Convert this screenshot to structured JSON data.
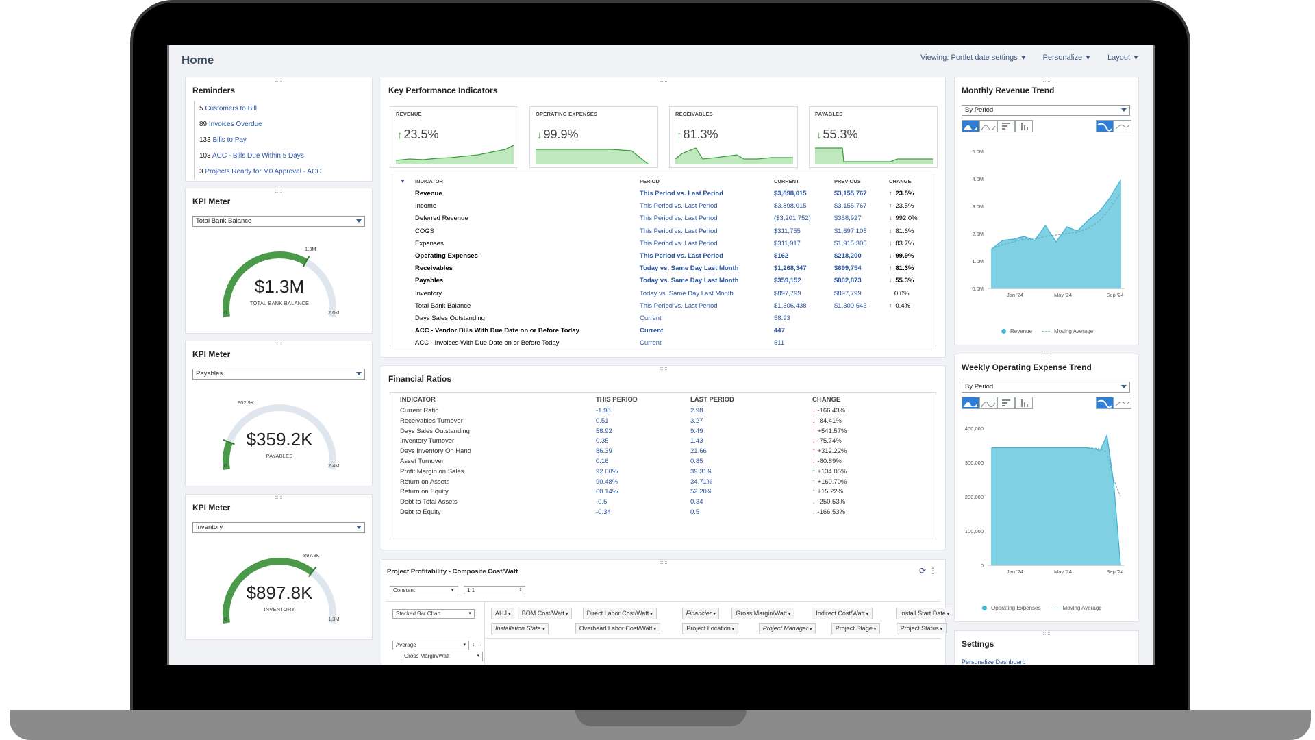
{
  "page": {
    "title": "Home"
  },
  "top_menu": [
    {
      "label": "Viewing: Portlet date settings"
    },
    {
      "label": "Personalize"
    },
    {
      "label": "Layout"
    }
  ],
  "reminders": {
    "title": "Reminders",
    "items": [
      {
        "count": "5",
        "label": "Customers to Bill"
      },
      {
        "count": "89",
        "label": "Invoices Overdue"
      },
      {
        "count": "133",
        "label": "Bills to Pay"
      },
      {
        "count": "103",
        "label": "ACC - Bills Due Within 5 Days"
      },
      {
        "count": "3",
        "label": "Projects Ready for M0 Approval - ACC"
      }
    ]
  },
  "kpi_meters": [
    {
      "title": "KPI Meter",
      "select": "Total Bank Balance",
      "value": "$1.3M",
      "label": "TOTAL BANK BALANCE",
      "min": "0",
      "max": "2.0M",
      "marker": "1.3M",
      "fraction": 0.65
    },
    {
      "title": "KPI Meter",
      "select": "Payables",
      "value": "$359.2K",
      "label": "PAYABLES",
      "min": "0",
      "max": "2.4M",
      "marker": "802.9K",
      "fraction": 0.15
    },
    {
      "title": "KPI Meter",
      "select": "Inventory",
      "value": "$897.8K",
      "label": "INVENTORY",
      "min": "0",
      "max": "1.3M",
      "marker": "897.8K",
      "fraction": 0.69
    }
  ],
  "kpi": {
    "title": "Key Performance Indicators",
    "cards": [
      {
        "label": "REVENUE",
        "value": "23.5%",
        "arrow": "↑"
      },
      {
        "label": "OPERATING EXPENSES",
        "value": "99.9%",
        "arrow": "↓"
      },
      {
        "label": "RECEIVABLES",
        "value": "81.3%",
        "arrow": "↑"
      },
      {
        "label": "PAYABLES",
        "value": "55.3%",
        "arrow": "↓"
      }
    ],
    "headers": {
      "indicator": "INDICATOR",
      "period": "PERIOD",
      "current": "CURRENT",
      "previous": "PREVIOUS",
      "change": "CHANGE"
    },
    "rows": [
      {
        "indicator": "Revenue",
        "period": "This Period vs. Last Period",
        "current": "$3,898,015",
        "previous": "$3,155,767",
        "change": "23.5%",
        "dir": "up",
        "bold": true
      },
      {
        "indicator": "Income",
        "period": "This Period vs. Last Period",
        "current": "$3,898,015",
        "previous": "$3,155,767",
        "change": "23.5%",
        "dir": "up",
        "bold": false
      },
      {
        "indicator": "Deferred Revenue",
        "period": "This Period vs. Last Period",
        "current": "($3,201,752)",
        "previous": "$358,927",
        "change": "992.0%",
        "dir": "dn",
        "bold": false
      },
      {
        "indicator": "COGS",
        "period": "This Period vs. Last Period",
        "current": "$311,755",
        "previous": "$1,697,105",
        "change": "81.6%",
        "dir": "up",
        "bold": false
      },
      {
        "indicator": "Expenses",
        "period": "This Period vs. Last Period",
        "current": "$311,917",
        "previous": "$1,915,305",
        "change": "83.7%",
        "dir": "up",
        "bold": false
      },
      {
        "indicator": "Operating Expenses",
        "period": "This Period vs. Last Period",
        "current": "$162",
        "previous": "$218,200",
        "change": "99.9%",
        "dir": "up",
        "bold": true
      },
      {
        "indicator": "Receivables",
        "period": "Today vs. Same Day Last Month",
        "current": "$1,268,347",
        "previous": "$699,754",
        "change": "81.3%",
        "dir": "up",
        "bold": true
      },
      {
        "indicator": "Payables",
        "period": "Today vs. Same Day Last Month",
        "current": "$359,152",
        "previous": "$802,873",
        "change": "55.3%",
        "dir": "up",
        "bold": true
      },
      {
        "indicator": "Inventory",
        "period": "Today vs. Same Day Last Month",
        "current": "$897,799",
        "previous": "$897,799",
        "change": "0.0%",
        "dir": "none",
        "bold": false
      },
      {
        "indicator": "Total Bank Balance",
        "period": "This Period vs. Last Period",
        "current": "$1,306,438",
        "previous": "$1,300,643",
        "change": "0.4%",
        "dir": "up",
        "bold": false
      },
      {
        "indicator": "Days Sales Outstanding",
        "period": "Current",
        "current": "58.93",
        "previous": "",
        "change": "",
        "dir": "none",
        "bold": false
      },
      {
        "indicator": "ACC - Vendor Bills With Due Date on or Before Today",
        "period": "Current",
        "current": "447",
        "previous": "",
        "change": "",
        "dir": "none",
        "bold": true
      },
      {
        "indicator": "ACC - Invoices With Due Date on or Before Today",
        "period": "Current",
        "current": "511",
        "previous": "",
        "change": "",
        "dir": "none",
        "bold": false
      }
    ]
  },
  "ratios": {
    "title": "Financial Ratios",
    "headers": {
      "indicator": "INDICATOR",
      "this": "THIS PERIOD",
      "last": "LAST PERIOD",
      "change": "CHANGE"
    },
    "rows": [
      {
        "indicator": "Current Ratio",
        "this": "-1.98",
        "last": "2.98",
        "change": "-166.43%",
        "dir": "dn"
      },
      {
        "indicator": "Receivables Turnover",
        "this": "0.51",
        "last": "3.27",
        "change": "-84.41%",
        "dir": "dn"
      },
      {
        "indicator": "Days Sales Outstanding",
        "this": "58.92",
        "last": "9.49",
        "change": "+541.57%",
        "dir": "upred"
      },
      {
        "indicator": "Inventory Turnover",
        "this": "0.35",
        "last": "1.43",
        "change": "-75.74%",
        "dir": "dn"
      },
      {
        "indicator": "Days Inventory On Hand",
        "this": "86.39",
        "last": "21.66",
        "change": "+312.22%",
        "dir": "upred"
      },
      {
        "indicator": "Asset Turnover",
        "this": "0.16",
        "last": "0.85",
        "change": "-80.89%",
        "dir": "dn"
      },
      {
        "indicator": "Profit Margin on Sales",
        "this": "92.00%",
        "last": "39.31%",
        "change": "+134.05%",
        "dir": "up"
      },
      {
        "indicator": "Return on Assets",
        "this": "90.48%",
        "last": "34.71%",
        "change": "+160.70%",
        "dir": "up"
      },
      {
        "indicator": "Return on Equity",
        "this": "60.14%",
        "last": "52.20%",
        "change": "+15.22%",
        "dir": "up"
      },
      {
        "indicator": "Debt to Total Assets",
        "this": "-0.5",
        "last": "0.34",
        "change": "-250.53%",
        "dir": "dngreen"
      },
      {
        "indicator": "Debt to Equity",
        "this": "-0.34",
        "last": "0.5",
        "change": "-166.53%",
        "dir": "dngreen"
      }
    ]
  },
  "project": {
    "title": "Project Profitability - Composite Cost/Watt",
    "constant_select": "Constant",
    "constant_value": "1.1",
    "chart_type_select": "Stacked Bar Chart",
    "agg_select": "Average",
    "measure_select": "Gross Margin/Watt",
    "chips_row1": [
      {
        "label": "AHJ",
        "italic": false
      },
      {
        "label": "BOM Cost/Watt",
        "italic": false
      },
      {
        "label": "Direct Labor Cost/Watt",
        "italic": false
      },
      {
        "label": "Financier",
        "italic": true
      },
      {
        "label": "Gross Margin/Watt",
        "italic": false
      },
      {
        "label": "Indirect Cost/Watt",
        "italic": false
      },
      {
        "label": "Install Start Date",
        "italic": false
      }
    ],
    "chips_row2": [
      {
        "label": "Installation State",
        "italic": true
      },
      {
        "label": "Overhead Labor Cost/Watt",
        "italic": false
      },
      {
        "label": "Project Location",
        "italic": false
      },
      {
        "label": "Project Manager",
        "italic": true
      },
      {
        "label": "Project Stage",
        "italic": false
      },
      {
        "label": "Project Status",
        "italic": false
      }
    ]
  },
  "monthly_revenue": {
    "title": "Monthly Revenue Trend",
    "select": "By Period",
    "legend": {
      "series": "Revenue",
      "avg": "Moving Average"
    },
    "y_ticks": [
      "5.0M",
      "4.0M",
      "3.0M",
      "2.0M",
      "1.0M",
      "0.0M"
    ],
    "x_ticks": [
      "Jan '24",
      "May '24",
      "Sep '24"
    ]
  },
  "weekly_opex": {
    "title": "Weekly Operating Expense Trend",
    "select": "By Period",
    "legend": {
      "series": "Operating Expenses",
      "avg": "Moving Average"
    },
    "y_ticks": [
      "400,000",
      "300,000",
      "200,000",
      "100,000",
      "0"
    ],
    "x_ticks": [
      "Jan '24",
      "May '24",
      "Sep '24"
    ]
  },
  "settings": {
    "title": "Settings",
    "link": "Personalize Dashboard"
  },
  "chart_data": [
    {
      "type": "area",
      "title": "Monthly Revenue Trend",
      "series": [
        {
          "name": "Revenue",
          "values": [
            1.45,
            1.75,
            1.8,
            1.9,
            1.75,
            2.3,
            1.7,
            2.25,
            2.1,
            2.5,
            2.8,
            3.3,
            3.95
          ]
        }
      ],
      "moving_average": [
        1.45,
        1.6,
        1.7,
        1.8,
        1.8,
        1.9,
        1.95,
        2.0,
        2.05,
        2.2,
        2.45,
        2.9,
        3.5
      ],
      "ylim": [
        0,
        5.0
      ],
      "x_ticks": [
        "Jan '24",
        "May '24",
        "Sep '24"
      ]
    },
    {
      "type": "area",
      "title": "Weekly Operating Expense Trend",
      "series": [
        {
          "name": "Operating Expenses",
          "values": [
            343000,
            343000,
            343000,
            343000,
            343000,
            343000,
            343000,
            343000,
            343000,
            343000,
            343000,
            343000,
            343000,
            343000,
            343000,
            340000,
            335000,
            380000,
            240000,
            0
          ]
        }
      ],
      "moving_average": [
        343000,
        343000,
        343000,
        343000,
        343000,
        343000,
        343000,
        343000,
        343000,
        343000,
        343000,
        343000,
        343000,
        343000,
        343000,
        342000,
        340000,
        330000,
        250000,
        200000
      ],
      "ylim": [
        0,
        400000
      ],
      "x_ticks": [
        "Jan '24",
        "May '24",
        "Sep '24"
      ]
    }
  ]
}
